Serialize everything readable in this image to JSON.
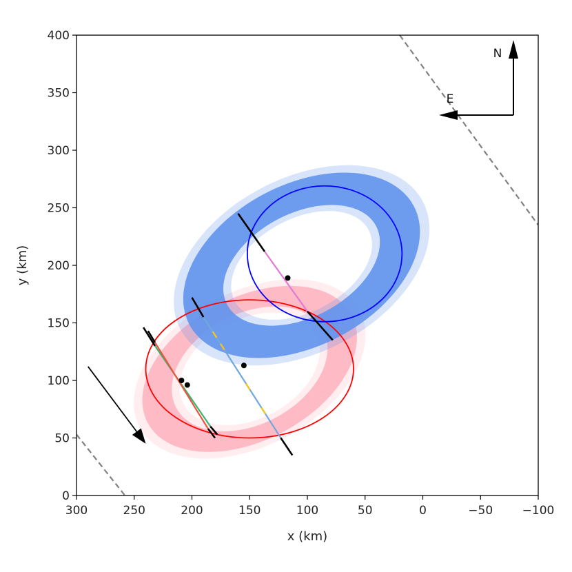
{
  "chart_data": {
    "type": "scatter",
    "title": "",
    "xlabel": "x (km)",
    "ylabel": "y (km)",
    "xlim": [
      300,
      -100
    ],
    "ylim": [
      0,
      400
    ],
    "x_ticks": [
      300,
      250,
      200,
      150,
      100,
      50,
      0,
      -50,
      -100
    ],
    "x_tick_labels": [
      "300",
      "250",
      "200",
      "150",
      "100",
      "50",
      "0",
      "−50",
      "−100"
    ],
    "y_ticks": [
      0,
      50,
      100,
      150,
      200,
      250,
      300,
      350,
      400
    ],
    "y_tick_labels": [
      "0",
      "50",
      "100",
      "150",
      "200",
      "250",
      "300",
      "350",
      "400"
    ],
    "grid": false,
    "colors": {
      "pink_band": "#ffb6c1",
      "blue_band": "#6495ed",
      "red_ellipse": "#ff0000",
      "blue_ellipse": "#0000ff",
      "chord_gold": "#f5c518",
      "chord_skyblue": "#6fa8dc",
      "chord_pink": "#e27ad6",
      "chord_green": "#3cb371",
      "chord_red": "#e8553b",
      "dashed": "#808080"
    },
    "ellipses": [
      {
        "name": "red",
        "center": [
          150,
          110
        ],
        "semi_major": 90,
        "semi_minor": 60,
        "angle_deg": 0,
        "color": "red_ellipse"
      },
      {
        "name": "blue",
        "center": [
          85,
          210
        ],
        "semi_major": 67,
        "semi_minor": 59,
        "angle_deg": 0,
        "color": "blue_ellipse"
      }
    ],
    "bands": [
      {
        "name": "pink",
        "center": [
          150,
          110
        ],
        "outer": [
          100,
          62
        ],
        "inner": [
          72,
          48
        ],
        "angle_deg": -28,
        "color": "pink_band"
      },
      {
        "name": "blue",
        "center": [
          105,
          200
        ],
        "outer": [
          110,
          70
        ],
        "inner": [
          73,
          45
        ],
        "angle_deg": -28,
        "color": "blue_band"
      }
    ],
    "chords": [
      {
        "dark": [
          [
            242,
            146
          ],
          [
            232,
            130
          ]
        ],
        "segments": [
          {
            "from": [
              232,
              130
            ],
            "to": [
              184,
              60
            ],
            "color": "chord_green"
          }
        ],
        "dark_end": [
          [
            184,
            60
          ],
          [
            178,
            53
          ]
        ]
      },
      {
        "dark": [
          [
            238,
            143
          ],
          [
            232,
            133
          ]
        ],
        "segments": [
          {
            "from": [
              232,
              133
            ],
            "to": [
              186,
              58
            ],
            "color": "chord_red"
          }
        ],
        "dark_end": [
          [
            186,
            58
          ],
          [
            180,
            50
          ]
        ]
      },
      {
        "dark": [
          [
            200,
            172
          ],
          [
            190,
            155
          ]
        ],
        "segments": [
          {
            "from": [
              190,
              155
            ],
            "to": [
              123,
              50
            ],
            "color": "chord_skyblue"
          }
        ],
        "dark_end": [
          [
            123,
            50
          ],
          [
            113,
            35
          ]
        ]
      },
      {
        "dark": [
          [
            160,
            245
          ],
          [
            137,
            212
          ]
        ],
        "segments": [
          {
            "from": [
              137,
              212
            ],
            "to": [
              100,
              160
            ],
            "color": "chord_pink"
          }
        ],
        "dark_end": [
          [
            100,
            160
          ],
          [
            78,
            135
          ]
        ]
      }
    ],
    "points": [
      [
        209,
        100
      ],
      [
        204,
        96
      ],
      [
        155,
        113
      ],
      [
        117,
        189
      ]
    ],
    "dashed_lines": [
      {
        "from": [
          20,
          400
        ],
        "to": [
          -100,
          235
        ]
      },
      {
        "from": [
          300,
          53
        ],
        "to": [
          258,
          0
        ]
      }
    ],
    "motion_arrow": {
      "from": [
        290,
        112
      ],
      "to": [
        240,
        45
      ]
    },
    "compass": {
      "north_label": "N",
      "east_label": "E"
    }
  }
}
